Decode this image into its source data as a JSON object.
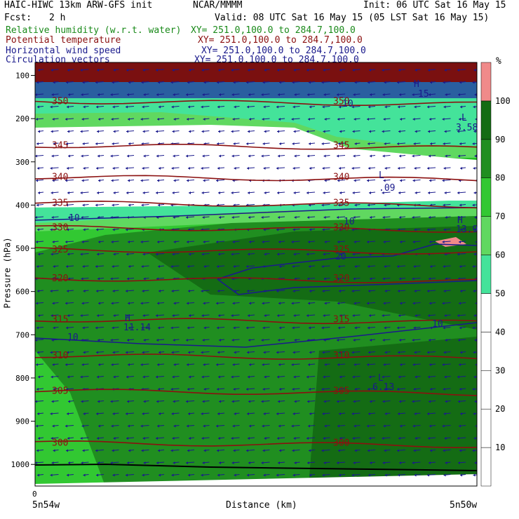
{
  "header": {
    "model": "HAIC-HIWC 13km ARW-GFS init",
    "org": "NCAR/MMMM",
    "init": "Init: 06 UTC Sat 16 May 15",
    "fcst_label": "Fcst:",
    "fcst_value": "2 h",
    "valid": "Valid: 08 UTC Sat 16 May 15 (05 LST Sat 16 May 15)"
  },
  "legend": [
    {
      "name": "Relative humidity (w.r.t. water)",
      "xy": "XY= 251.0,100.0 to 284.7,100.0",
      "color": "#1a8a1a"
    },
    {
      "name": "Potential temperature",
      "xy": "XY= 251.0,100.0 to 284.7,100.0",
      "color": "#8b1010"
    },
    {
      "name": "Horizontal wind speed",
      "xy": "XY= 251.0,100.0 to 284.7,100.0",
      "color": "#1a1a8c"
    },
    {
      "name": "Circulation vectors",
      "xy": "XY= 251.0,100.0 to 284.7,100.0",
      "color": "#1a1a8c"
    }
  ],
  "colorbar": {
    "unit": "%",
    "levels": [
      10,
      20,
      30,
      40,
      50,
      60,
      70,
      80,
      90,
      100
    ],
    "colors": [
      "#ffffff",
      "#ffffff",
      "#ffffff",
      "#ffffff",
      "#ffffff",
      "#44e39a",
      "#60d860",
      "#32c832",
      "#208e20",
      "#146c14",
      "#f08a8a"
    ]
  },
  "chart_data": {
    "type": "cross-section",
    "xlabel": "Distance (km)",
    "ylabel": "Pressure (hPa)",
    "x_start_label": "0",
    "x_left_label": "5n54w",
    "x_right_label": "5n50w",
    "xlim": [
      0,
      4
    ],
    "ylim": [
      1050,
      70
    ],
    "yticks": [
      100,
      200,
      300,
      400,
      500,
      600,
      700,
      800,
      900,
      1000
    ],
    "theta_contours": [
      {
        "label": "350",
        "p": 160
      },
      {
        "label": "345",
        "p": 262
      },
      {
        "label": "340",
        "p": 335
      },
      {
        "label": "335",
        "p": 395
      },
      {
        "label": "330",
        "p": 452
      },
      {
        "label": "325",
        "p": 503
      },
      {
        "label": "320",
        "p": 570
      },
      {
        "label": "315",
        "p": 665
      },
      {
        "label": "310",
        "p": 748
      },
      {
        "label": "305",
        "p": 830
      },
      {
        "label": "300",
        "p": 950
      }
    ],
    "wind_labels": [
      "10",
      "10",
      "10",
      "10",
      "20",
      "10"
    ],
    "annotations": [
      {
        "text": "H",
        "value": "11.14"
      },
      {
        "text": "L",
        "value": "6.13"
      },
      {
        "text": "H",
        "value": "13.9"
      },
      {
        "text": "L",
        "value": "3.58"
      },
      {
        "text": "L",
        "value": ".09"
      },
      {
        "text": "H",
        "value": "15"
      }
    ]
  }
}
